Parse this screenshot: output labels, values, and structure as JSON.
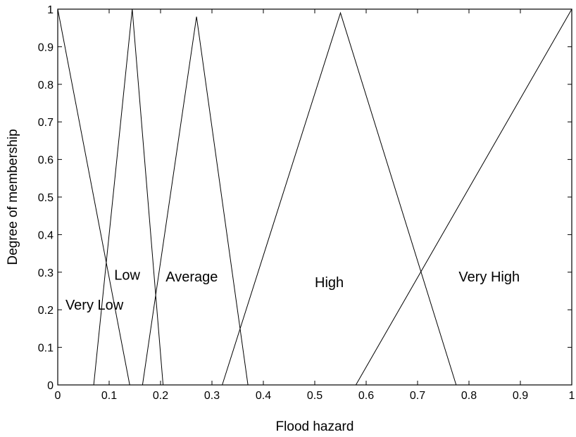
{
  "chart_data": {
    "type": "line",
    "xlabel": "Flood hazard",
    "ylabel": "Degree of membership",
    "xlim": [
      0,
      1
    ],
    "ylim": [
      0,
      1
    ],
    "grid": false,
    "xticks": [
      "0",
      "0.1",
      "0.2",
      "0.3",
      "0.4",
      "0.5",
      "0.6",
      "0.7",
      "0.8",
      "0.9",
      "1"
    ],
    "yticks": [
      "0",
      "0.1",
      "0.2",
      "0.3",
      "0.4",
      "0.5",
      "0.6",
      "0.7",
      "0.8",
      "0.9",
      "1"
    ],
    "series": [
      {
        "name": "Very Low",
        "x": [
          0,
          0.14
        ],
        "y": [
          1,
          0
        ],
        "label_at": [
          0.015,
          0.2
        ]
      },
      {
        "name": "Low",
        "x": [
          0.07,
          0.145,
          0.205
        ],
        "y": [
          0,
          1,
          0
        ],
        "label_at": [
          0.11,
          0.28
        ]
      },
      {
        "name": "Average",
        "x": [
          0.165,
          0.27,
          0.37
        ],
        "y": [
          0,
          0.98,
          0
        ],
        "label_at": [
          0.21,
          0.275
        ]
      },
      {
        "name": "High",
        "x": [
          0.32,
          0.55,
          0.775
        ],
        "y": [
          0,
          0.99,
          0
        ],
        "label_at": [
          0.5,
          0.26
        ]
      },
      {
        "name": "Very High",
        "x": [
          0.58,
          1.0
        ],
        "y": [
          0,
          1
        ],
        "label_at": [
          0.78,
          0.275
        ]
      }
    ],
    "line_color": "#000000"
  }
}
